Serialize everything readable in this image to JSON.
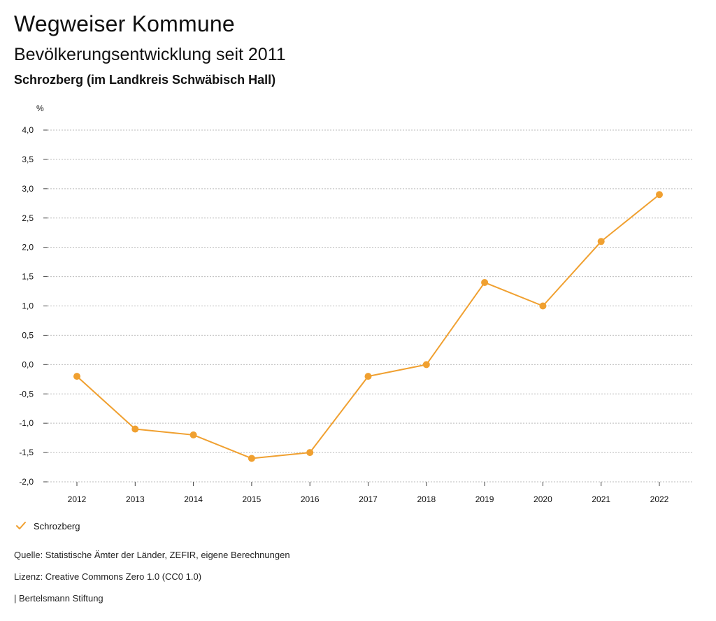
{
  "header": {
    "title": "Wegweiser Kommune",
    "subtitle": "Bevölkerungsentwicklung seit 2011",
    "place": "Schrozberg (im Landkreis Schwäbisch Hall)"
  },
  "colors": {
    "series": "#f0a030",
    "grid": "#bbbbbb",
    "axis": "#444444"
  },
  "chart_data": {
    "type": "line",
    "ylabel": "%",
    "ylim": [
      -2.0,
      4.0
    ],
    "yticks": [
      4.0,
      3.5,
      3.0,
      2.5,
      2.0,
      1.5,
      1.0,
      0.5,
      0.0,
      -0.5,
      -1.0,
      -1.5,
      -2.0
    ],
    "ytick_labels": [
      "4,0",
      "3,5",
      "3,0",
      "2,5",
      "2,0",
      "1,5",
      "1,0",
      "0,5",
      "0,0",
      "-0,5",
      "-1,0",
      "-1,5",
      "-2,0"
    ],
    "categories": [
      "2012",
      "2013",
      "2014",
      "2015",
      "2016",
      "2017",
      "2018",
      "2019",
      "2020",
      "2021",
      "2022"
    ],
    "grid": true,
    "legend_position": "bottom-left",
    "series": [
      {
        "name": "Schrozberg",
        "values": [
          -0.2,
          -1.1,
          -1.2,
          -1.6,
          -1.5,
          -0.2,
          0.0,
          1.4,
          1.0,
          2.1,
          2.9
        ]
      }
    ]
  },
  "legend": {
    "label": "Schrozberg",
    "icon": "check-icon"
  },
  "footer": {
    "source": "Quelle: Statistische Ämter der Länder, ZEFIR, eigene Berechnungen",
    "license": "Lizenz: Creative Commons Zero 1.0 (CC0 1.0)",
    "publisher": "| Bertelsmann Stiftung"
  }
}
